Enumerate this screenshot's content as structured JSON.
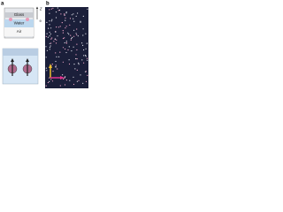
{
  "panels": [
    {
      "label": "a"
    },
    {
      "label": "b"
    }
  ],
  "diagram": {
    "layers": [
      "Glass",
      "Water",
      "Air"
    ],
    "axis": "z"
  }
}
